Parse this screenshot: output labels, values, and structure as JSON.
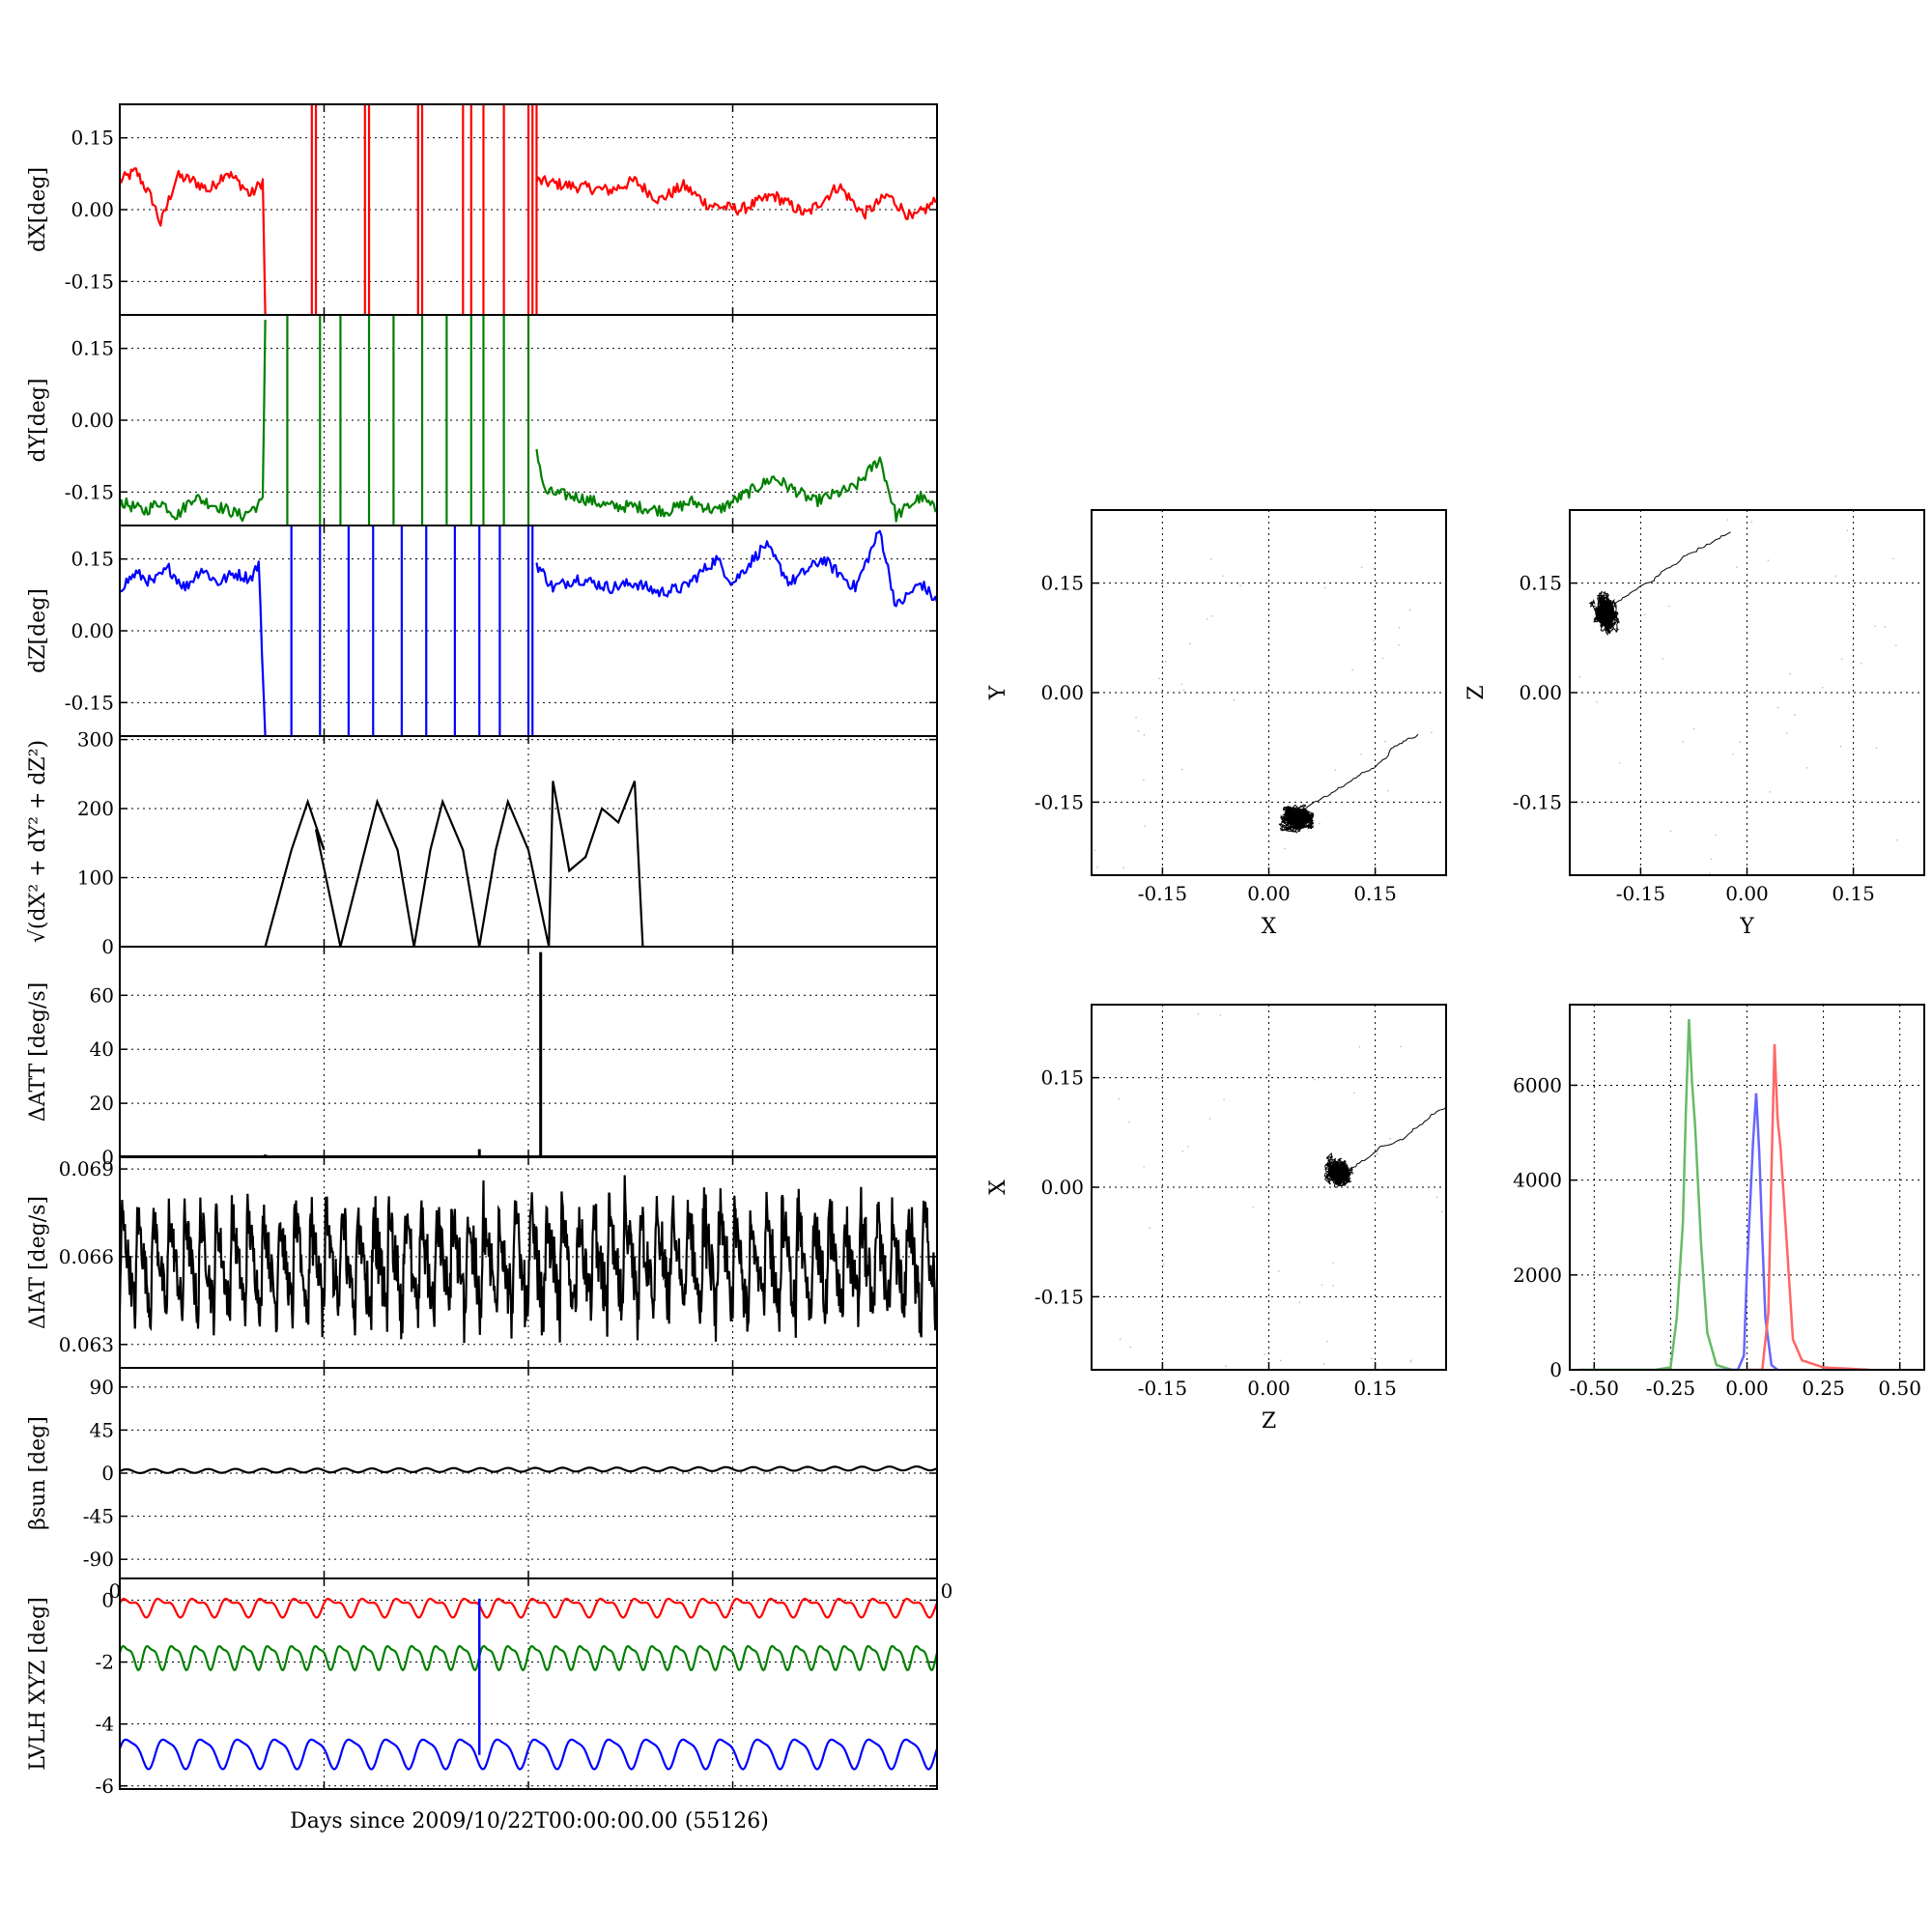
{
  "figure": {
    "xlabel": "Days since 2009/10/22T00:00:00.00 (55126)",
    "stray_tick_labels": [
      "0",
      "0"
    ]
  },
  "chart_data": [
    {
      "id": "dx",
      "type": "line",
      "ylabel": "dX[deg]",
      "color": "#ff0000",
      "ylim": [
        -0.22,
        0.22
      ],
      "yticks": [
        "0.15",
        "0.00",
        "-0.15"
      ],
      "ytick_values": [
        0.15,
        0.0,
        -0.15
      ],
      "xlim": [
        0,
        1
      ],
      "grid": true,
      "trend": [
        [
          0.0,
          0.06
        ],
        [
          0.02,
          0.08
        ],
        [
          0.04,
          0.02
        ],
        [
          0.05,
          -0.03
        ],
        [
          0.07,
          0.07
        ],
        [
          0.09,
          0.06
        ],
        [
          0.11,
          0.04
        ],
        [
          0.13,
          0.08
        ],
        [
          0.15,
          0.05
        ],
        [
          0.16,
          0.03
        ],
        [
          0.175,
          0.06
        ],
        [
          0.178,
          -0.22
        ]
      ],
      "trend2": [
        [
          0.51,
          0.06
        ],
        [
          0.55,
          0.05
        ],
        [
          0.6,
          0.04
        ],
        [
          0.63,
          0.06
        ],
        [
          0.66,
          0.02
        ],
        [
          0.69,
          0.05
        ],
        [
          0.72,
          0.01
        ],
        [
          0.76,
          0.0
        ],
        [
          0.8,
          0.03
        ],
        [
          0.84,
          -0.01
        ],
        [
          0.88,
          0.05
        ],
        [
          0.91,
          -0.01
        ],
        [
          0.94,
          0.03
        ],
        [
          0.97,
          -0.02
        ],
        [
          1.0,
          0.02
        ]
      ],
      "spikes": [
        0.235,
        0.24,
        0.3,
        0.305,
        0.365,
        0.37,
        0.42,
        0.43,
        0.445,
        0.47,
        0.5,
        0.505,
        0.51
      ]
    },
    {
      "id": "dy",
      "type": "line",
      "ylabel": "dY[deg]",
      "color": "#008000",
      "ylim": [
        -0.22,
        0.22
      ],
      "yticks": [
        "0.15",
        "0.00",
        "-0.15"
      ],
      "ytick_values": [
        0.15,
        0.0,
        -0.15
      ],
      "xlim": [
        0,
        1
      ],
      "grid": true,
      "trend": [
        [
          0.0,
          -0.17
        ],
        [
          0.03,
          -0.19
        ],
        [
          0.05,
          -0.17
        ],
        [
          0.07,
          -0.2
        ],
        [
          0.09,
          -0.16
        ],
        [
          0.12,
          -0.18
        ],
        [
          0.15,
          -0.2
        ],
        [
          0.175,
          -0.17
        ],
        [
          0.178,
          0.21
        ]
      ],
      "trend2": [
        [
          0.51,
          -0.06
        ],
        [
          0.52,
          -0.15
        ],
        [
          0.56,
          -0.16
        ],
        [
          0.6,
          -0.18
        ],
        [
          0.63,
          -0.18
        ],
        [
          0.67,
          -0.19
        ],
        [
          0.7,
          -0.17
        ],
        [
          0.73,
          -0.19
        ],
        [
          0.76,
          -0.16
        ],
        [
          0.8,
          -0.12
        ],
        [
          0.85,
          -0.17
        ],
        [
          0.9,
          -0.14
        ],
        [
          0.93,
          -0.08
        ],
        [
          0.95,
          -0.2
        ],
        [
          0.98,
          -0.16
        ],
        [
          1.0,
          -0.19
        ]
      ],
      "spikes": [
        0.205,
        0.245,
        0.27,
        0.305,
        0.335,
        0.37,
        0.4,
        0.43,
        0.445,
        0.47,
        0.5
      ]
    },
    {
      "id": "dz",
      "type": "line",
      "ylabel": "dZ[deg]",
      "color": "#0000ff",
      "ylim": [
        -0.22,
        0.22
      ],
      "yticks": [
        "0.15",
        "0.00",
        "-0.15"
      ],
      "ytick_values": [
        0.15,
        0.0,
        -0.15
      ],
      "xlim": [
        0,
        1
      ],
      "grid": true,
      "trend": [
        [
          0.0,
          0.09
        ],
        [
          0.02,
          0.12
        ],
        [
          0.04,
          0.1
        ],
        [
          0.06,
          0.13
        ],
        [
          0.08,
          0.09
        ],
        [
          0.1,
          0.13
        ],
        [
          0.12,
          0.1
        ],
        [
          0.14,
          0.12
        ],
        [
          0.16,
          0.11
        ],
        [
          0.17,
          0.14
        ],
        [
          0.178,
          -0.22
        ]
      ],
      "trend2": [
        [
          0.51,
          0.14
        ],
        [
          0.53,
          0.09
        ],
        [
          0.56,
          0.11
        ],
        [
          0.6,
          0.09
        ],
        [
          0.63,
          0.1
        ],
        [
          0.66,
          0.08
        ],
        [
          0.69,
          0.09
        ],
        [
          0.73,
          0.15
        ],
        [
          0.75,
          0.1
        ],
        [
          0.79,
          0.18
        ],
        [
          0.82,
          0.1
        ],
        [
          0.86,
          0.15
        ],
        [
          0.9,
          0.09
        ],
        [
          0.93,
          0.21
        ],
        [
          0.95,
          0.05
        ],
        [
          0.98,
          0.1
        ],
        [
          1.0,
          0.06
        ]
      ],
      "spikes": [
        0.21,
        0.245,
        0.28,
        0.31,
        0.345,
        0.375,
        0.41,
        0.44,
        0.465,
        0.5,
        0.505
      ]
    },
    {
      "id": "mag",
      "type": "line",
      "ylabel": "√(dX² + dY² + dZ²)",
      "color": "#000000",
      "ylim": [
        0,
        305
      ],
      "yticks": [
        "300",
        "200",
        "100",
        "0"
      ],
      "ytick_values": [
        300,
        200,
        100,
        0
      ],
      "xlim": [
        0,
        1
      ],
      "grid": true,
      "points": [
        [
          0.178,
          0
        ],
        [
          0.21,
          140
        ],
        [
          0.23,
          210
        ],
        [
          0.25,
          140
        ],
        [
          0.24,
          170
        ],
        [
          0.27,
          0
        ],
        [
          0.3,
          140
        ],
        [
          0.315,
          210
        ],
        [
          0.34,
          140
        ],
        [
          0.36,
          0
        ],
        [
          0.38,
          140
        ],
        [
          0.395,
          210
        ],
        [
          0.42,
          140
        ],
        [
          0.44,
          0
        ],
        [
          0.46,
          140
        ],
        [
          0.475,
          210
        ],
        [
          0.5,
          140
        ],
        [
          0.525,
          0
        ],
        [
          0.53,
          240
        ],
        [
          0.55,
          110
        ],
        [
          0.57,
          130
        ],
        [
          0.59,
          200
        ],
        [
          0.61,
          180
        ],
        [
          0.63,
          240
        ],
        [
          0.635,
          120
        ],
        [
          0.64,
          0
        ]
      ]
    },
    {
      "id": "datt",
      "type": "line",
      "ylabel": "ΔATT [deg/s]",
      "color": "#000000",
      "ylim": [
        0,
        78
      ],
      "yticks": [
        "60",
        "40",
        "20",
        "0"
      ],
      "ytick_values": [
        60,
        40,
        20,
        0
      ],
      "xlim": [
        0,
        1
      ],
      "grid": true,
      "spikes": [
        [
          0.178,
          1
        ],
        [
          0.44,
          3
        ],
        [
          0.515,
          76
        ]
      ]
    },
    {
      "id": "diat",
      "type": "line",
      "ylabel": "ΔIAT [deg/s]",
      "color": "#000000",
      "ylim": [
        0.0622,
        0.0694
      ],
      "yticks": [
        "0.069",
        "0.066",
        "0.063"
      ],
      "ytick_values": [
        0.069,
        0.066,
        0.063
      ],
      "xlim": [
        0,
        1
      ],
      "grid": true,
      "base": 0.0656,
      "amplitude": 0.0022,
      "cycles": 52
    },
    {
      "id": "beta",
      "type": "line",
      "ylabel": "βsun [deg]",
      "color": "#000000",
      "ylim": [
        -110,
        110
      ],
      "yticks": [
        "90",
        "45",
        "0",
        "-45",
        "-90"
      ],
      "ytick_values": [
        90,
        45,
        0,
        -45,
        -90
      ],
      "xlim": [
        0,
        1
      ],
      "grid": true,
      "base": 2,
      "amplitude": 2,
      "cycles": 30
    },
    {
      "id": "lvlh",
      "type": "line",
      "ylabel": "LVLH XYZ [deg]",
      "color": "#000000",
      "ylim": [
        -6.1,
        0.7
      ],
      "yticks": [
        "0",
        "-2",
        "-4",
        "-6"
      ],
      "ytick_values": [
        0,
        -2,
        -4,
        -6
      ],
      "xlim": [
        0,
        1
      ],
      "grid": true,
      "series": [
        {
          "color": "#ff0000",
          "base": -0.2,
          "amplitude": 0.25,
          "cycles": 24
        },
        {
          "color": "#008000",
          "base": -1.8,
          "amplitude": 0.35,
          "cycles": 34
        },
        {
          "color": "#0000ff",
          "base": -4.9,
          "amplitude": 0.45,
          "cycles": 22
        }
      ],
      "spike": {
        "x": 0.44,
        "y1": 0.05,
        "y2": -5.0,
        "color": "#0000ff"
      }
    },
    {
      "id": "xy",
      "type": "scatter",
      "xlabel": "X",
      "ylabel": "Y",
      "xlim": [
        -0.25,
        0.25
      ],
      "ylim": [
        -0.25,
        0.25
      ],
      "xticks": [
        "-0.15",
        "0.00",
        "0.15"
      ],
      "yticks": [
        "0.15",
        "0.00",
        "-0.15"
      ],
      "tick_values": [
        -0.15,
        0.0,
        0.15
      ],
      "cluster": {
        "cx": 0.04,
        "cy": -0.17,
        "sx": 0.03,
        "sy": 0.02
      },
      "grid": true
    },
    {
      "id": "yz",
      "type": "scatter",
      "xlabel": "Y",
      "ylabel": "Z",
      "xlim": [
        -0.25,
        0.25
      ],
      "ylim": [
        -0.25,
        0.25
      ],
      "xticks": [
        "-0.15",
        "0.00",
        "0.15"
      ],
      "yticks": [
        "0.15",
        "0.00",
        "-0.15"
      ],
      "tick_values": [
        -0.15,
        0.0,
        0.15
      ],
      "cluster": {
        "cx": -0.2,
        "cy": 0.11,
        "sx": 0.02,
        "sy": 0.03
      },
      "grid": true
    },
    {
      "id": "zx",
      "type": "scatter",
      "xlabel": "Z",
      "ylabel": "X",
      "xlim": [
        -0.25,
        0.25
      ],
      "ylim": [
        -0.25,
        0.25
      ],
      "xticks": [
        "-0.15",
        "0.00",
        "0.15"
      ],
      "yticks": [
        "0.15",
        "0.00",
        "-0.15"
      ],
      "tick_values": [
        -0.15,
        0.0,
        0.15
      ],
      "cluster": {
        "cx": 0.1,
        "cy": 0.02,
        "sx": 0.025,
        "sy": 0.025
      },
      "grid": true
    },
    {
      "id": "hist",
      "type": "line",
      "xlim": [
        -0.58,
        0.58
      ],
      "ylim": [
        0,
        7700
      ],
      "xticks": [
        "-0.50",
        "-0.25",
        "0.00",
        "0.25",
        "0.50"
      ],
      "xtick_values": [
        -0.5,
        -0.25,
        0.0,
        0.25,
        0.5
      ],
      "yticks": [
        "6000",
        "4000",
        "2000",
        "0"
      ],
      "ytick_values": [
        6000,
        4000,
        2000,
        0
      ],
      "grid": true,
      "series": [
        {
          "color": "#66bb66",
          "points": [
            [
              -0.55,
              0
            ],
            [
              -0.3,
              0
            ],
            [
              -0.25,
              50
            ],
            [
              -0.23,
              1000
            ],
            [
              -0.21,
              3000
            ],
            [
              -0.2,
              5500
            ],
            [
              -0.19,
              7200
            ],
            [
              -0.18,
              6200
            ],
            [
              -0.17,
              5000
            ],
            [
              -0.15,
              2500
            ],
            [
              -0.13,
              800
            ],
            [
              -0.1,
              100
            ],
            [
              -0.05,
              0
            ]
          ]
        },
        {
          "color": "#6666ff",
          "points": [
            [
              -0.1,
              0
            ],
            [
              -0.03,
              0
            ],
            [
              -0.01,
              300
            ],
            [
              0.0,
              2000
            ],
            [
              0.01,
              3500
            ],
            [
              0.02,
              5000
            ],
            [
              0.03,
              5700
            ],
            [
              0.04,
              4500
            ],
            [
              0.05,
              3000
            ],
            [
              0.06,
              1200
            ],
            [
              0.08,
              100
            ],
            [
              0.1,
              0
            ]
          ]
        },
        {
          "color": "#ff6666",
          "points": [
            [
              0.0,
              0
            ],
            [
              0.05,
              0
            ],
            [
              0.07,
              1000
            ],
            [
              0.08,
              4000
            ],
            [
              0.09,
              7000
            ],
            [
              0.1,
              5500
            ],
            [
              0.11,
              4500
            ],
            [
              0.13,
              2500
            ],
            [
              0.15,
              800
            ],
            [
              0.18,
              200
            ],
            [
              0.25,
              50
            ],
            [
              0.4,
              0
            ]
          ]
        }
      ]
    }
  ]
}
